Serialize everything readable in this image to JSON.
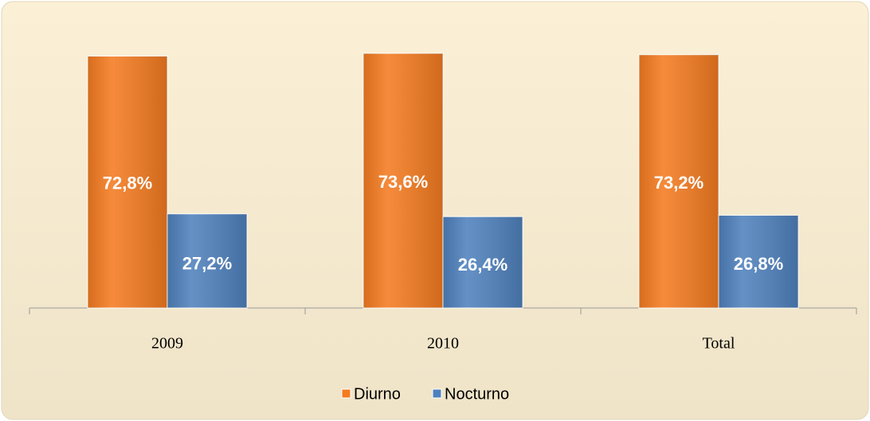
{
  "chart_data": {
    "type": "bar",
    "categories": [
      "2009",
      "2010",
      "Total"
    ],
    "series": [
      {
        "name": "Diurno",
        "color": "#f47b20",
        "values": [
          72.8,
          73.6,
          73.2
        ],
        "value_labels": [
          "72,8%",
          "73,6%",
          "73,2%"
        ]
      },
      {
        "name": "Nocturno",
        "color": "#4f81bd",
        "values": [
          27.2,
          26.4,
          26.8
        ],
        "value_labels": [
          "27,2%",
          "26,4%",
          "26,8%"
        ]
      }
    ],
    "legend": "bottom"
  }
}
